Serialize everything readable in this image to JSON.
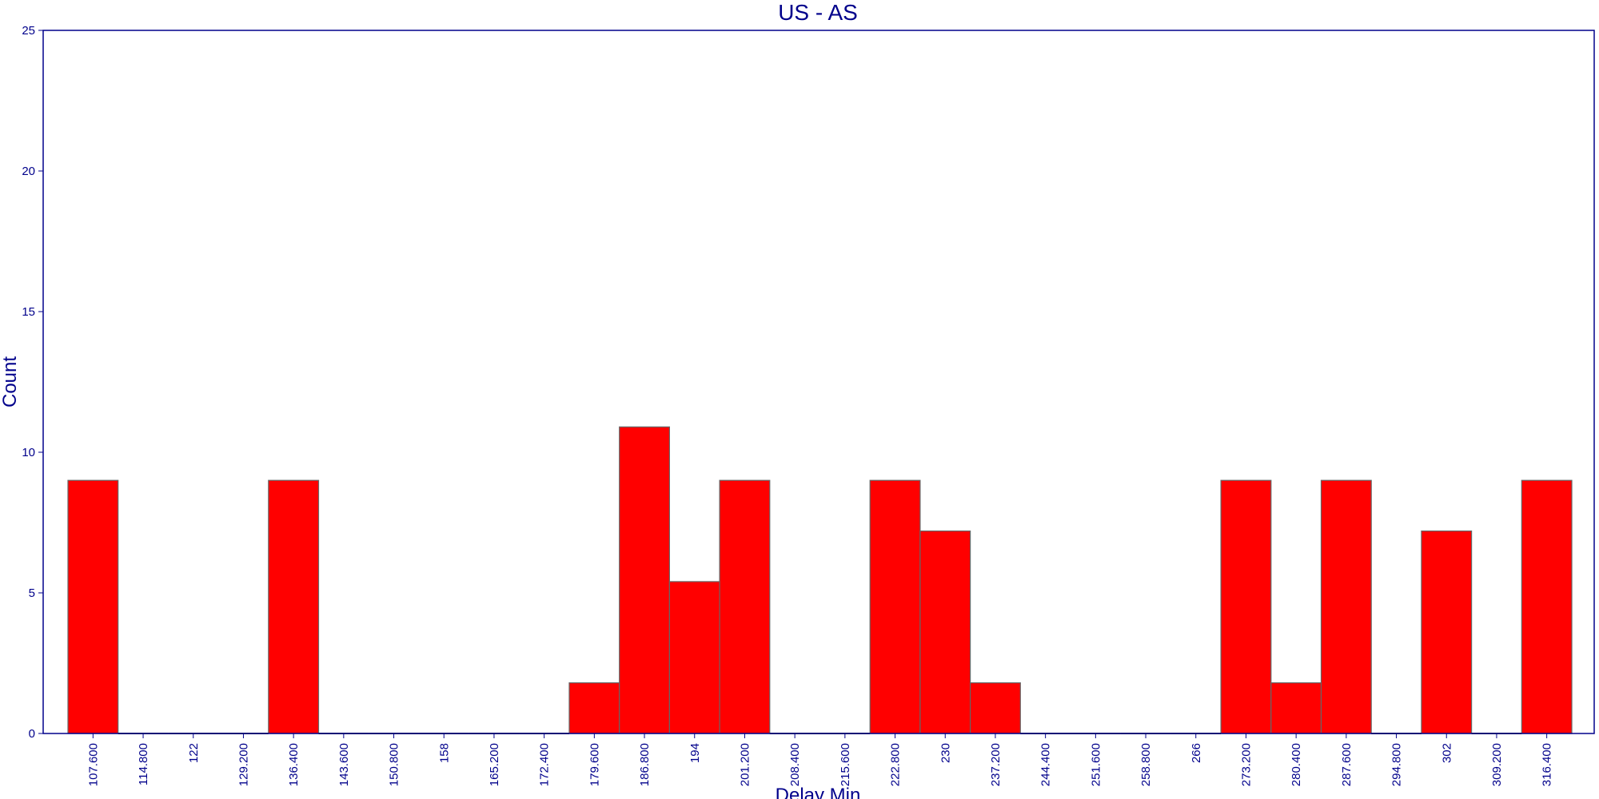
{
  "chart_data": {
    "type": "bar",
    "title": "US - AS",
    "xlabel": "Delay Min",
    "ylabel": "Count",
    "ylim": [
      0,
      25
    ],
    "yticks": [
      "0",
      "5",
      "10",
      "15",
      "20",
      "25"
    ],
    "categories": [
      "107.600",
      "114.800",
      "122",
      "129.200",
      "136.400",
      "143.600",
      "150.800",
      "158",
      "165.200",
      "172.400",
      "179.600",
      "186.800",
      "194",
      "201.200",
      "208.400",
      "215.600",
      "222.800",
      "230",
      "237.200",
      "244.400",
      "251.600",
      "258.800",
      "266",
      "273.200",
      "280.400",
      "287.600",
      "294.800",
      "302",
      "309.200",
      "316.400"
    ],
    "values": [
      9,
      0,
      0,
      0,
      9,
      0,
      0,
      0,
      0,
      0,
      1.8,
      10.9,
      5.4,
      9,
      0,
      0,
      9,
      7.2,
      1.8,
      0,
      0,
      0,
      0,
      9,
      1.8,
      9,
      0,
      7.2,
      0,
      9
    ],
    "grid": false,
    "colors": {
      "bar": "#FF0000",
      "bar_edge": "#666666",
      "axis": "#00008B",
      "text": "#00008B"
    }
  }
}
